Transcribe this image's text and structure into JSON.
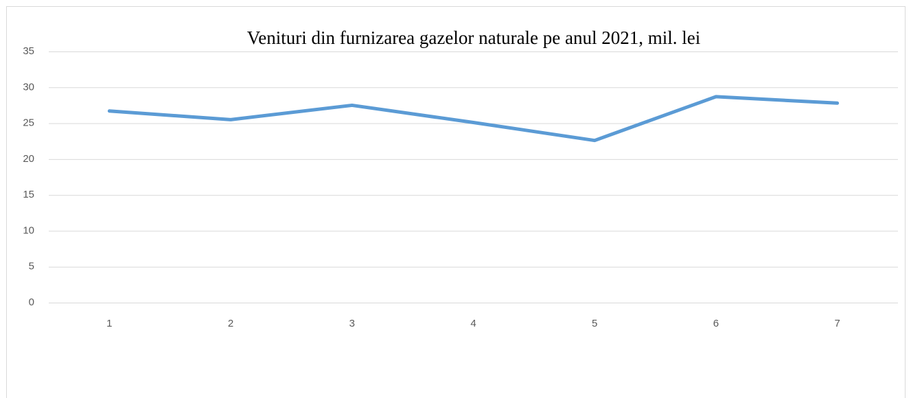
{
  "chart_data": {
    "type": "line",
    "title": "Venituri din furnizarea gazelor naturale pe anul 2021, mil. lei",
    "categories": [
      "1",
      "2",
      "3",
      "4",
      "5",
      "6",
      "7"
    ],
    "series": [
      {
        "name": "Venituri",
        "color": "#5b9bd5",
        "values": [
          26.7,
          25.5,
          27.5,
          25.1,
          22.6,
          28.7,
          27.8
        ]
      }
    ],
    "ylim": [
      0,
      35
    ],
    "yticks": [
      0,
      5,
      10,
      15,
      20,
      25,
      30,
      35
    ],
    "grid": true
  }
}
